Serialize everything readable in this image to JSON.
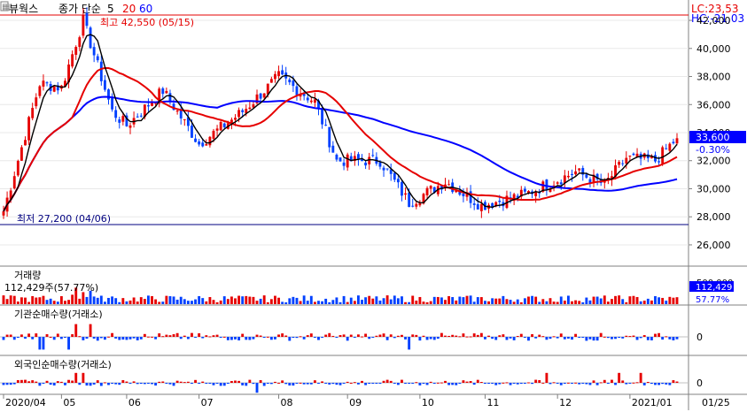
{
  "toolbar": {
    "title": "뷰웍스",
    "indicator": "종가 단순",
    "ma": [
      "5",
      "20",
      "60"
    ],
    "ma_colors": [
      "#000000",
      "#e60000",
      "#0000ff"
    ]
  },
  "corner": {
    "lc": "LC:23,53",
    "hc": "HC:-21,03"
  },
  "price_panel": {
    "high_label": "최고 42,550 (05/15)",
    "low_label": "최저 27,200 (04/06)",
    "current_price": "33,600",
    "current_change": "-0.30%"
  },
  "volume_panel": {
    "title": "거래량",
    "sub": "112,429주(57.77%)",
    "axis_tick": "500,000",
    "current_value": "112,429",
    "current_pct": "57.77%"
  },
  "inst_panel": {
    "title": "기관순매수량(거래소)",
    "zero": "0"
  },
  "foreign_panel": {
    "title": "외국인순매수량(거래소)",
    "zero": "0"
  },
  "chart_data": {
    "type": "candlestick",
    "price_axis": {
      "ticks": [
        26000,
        28000,
        30000,
        32000,
        34000,
        36000,
        38000,
        40000,
        42000
      ],
      "tick_labels": [
        "26,000",
        "28,000",
        "30,000",
        "32,000",
        "34,000",
        "36,000",
        "38,000",
        "40,000",
        "42,000"
      ],
      "range": [
        24800,
        43200
      ]
    },
    "x_axis": {
      "labels": [
        "2020/04",
        "05",
        "06",
        "07",
        "08",
        "09",
        "10",
        "11",
        "12",
        "2021/01",
        "01/25"
      ],
      "label_index": [
        0,
        16,
        34,
        54,
        76,
        95,
        115,
        133,
        153,
        173,
        193
      ]
    },
    "high": 42550,
    "low": 27200,
    "key_closes": [
      [
        0,
        28400
      ],
      [
        10,
        37500
      ],
      [
        16,
        37200
      ],
      [
        22,
        42000
      ],
      [
        30,
        35500
      ],
      [
        34,
        34500
      ],
      [
        44,
        37000
      ],
      [
        54,
        33200
      ],
      [
        66,
        35500
      ],
      [
        76,
        38000
      ],
      [
        86,
        36200
      ],
      [
        92,
        32000
      ],
      [
        104,
        32000
      ],
      [
        112,
        29000
      ],
      [
        122,
        30500
      ],
      [
        132,
        28800
      ],
      [
        144,
        29600
      ],
      [
        158,
        31200
      ],
      [
        166,
        30300
      ],
      [
        172,
        32200
      ],
      [
        180,
        32000
      ],
      [
        186,
        33600
      ]
    ],
    "n_days": 187
  }
}
